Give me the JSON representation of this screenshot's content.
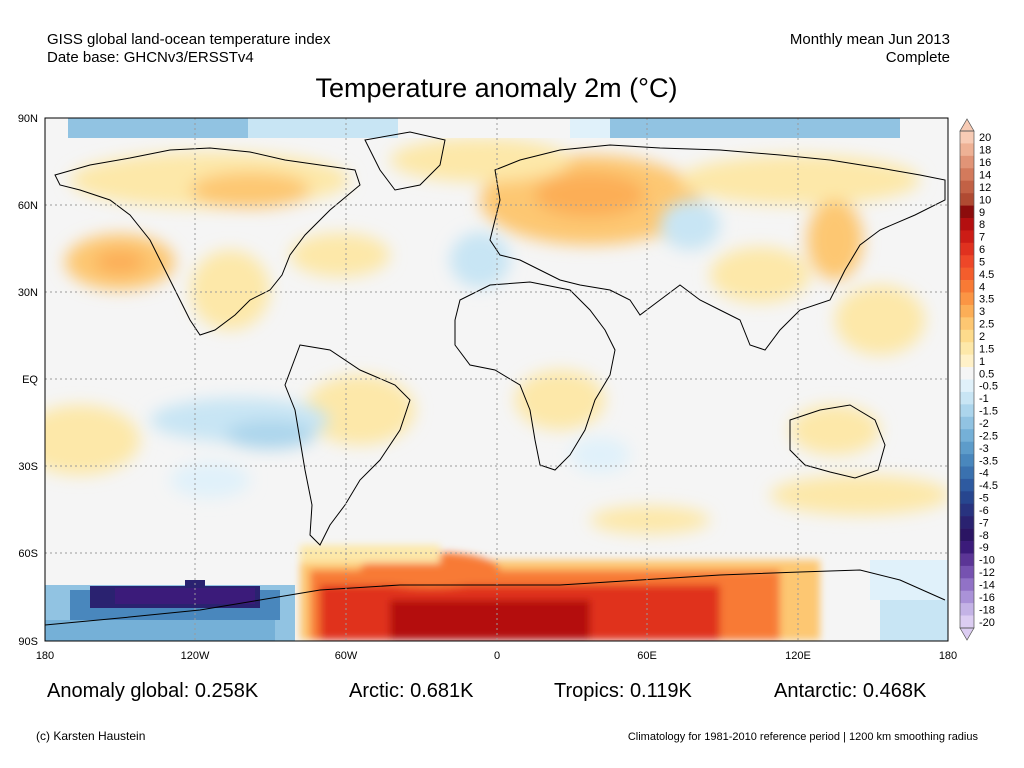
{
  "header": {
    "left_line1": "GISS global land-ocean temperature index",
    "left_line2": "Date base: GHCNv3/ERSSTv4",
    "right_line1": "Monthly mean Jun 2013",
    "right_line2": "Complete"
  },
  "title": "Temperature anomaly 2m (°C)",
  "map": {
    "lat_ticks": [
      "90N",
      "60N",
      "30N",
      "EQ",
      "30S",
      "60S",
      "90S"
    ],
    "lon_ticks": [
      "180",
      "120W",
      "60W",
      "0",
      "60E",
      "120E",
      "180"
    ],
    "ocean_neutral_color": "#f5f5f5",
    "coastline_color": "#000000"
  },
  "colorbar": {
    "labels": [
      "20",
      "18",
      "16",
      "14",
      "12",
      "10",
      "9",
      "8",
      "7",
      "6",
      "5",
      "4.5",
      "4",
      "3.5",
      "3",
      "2.5",
      "2",
      "1.5",
      "1",
      "0.5",
      "-0.5",
      "-1",
      "-1.5",
      "-2",
      "-2.5",
      "-3",
      "-3.5",
      "-4",
      "-4.5",
      "-5",
      "-6",
      "-7",
      "-8",
      "-9",
      "-10",
      "-12",
      "-14",
      "-16",
      "-18",
      "-20"
    ],
    "colors": [
      "#f7cbb5",
      "#eeb195",
      "#e19477",
      "#d37a5c",
      "#c26145",
      "#b04a32",
      "#8c0c0c",
      "#b40f10",
      "#cc1c16",
      "#e0311f",
      "#ee4728",
      "#f45d2c",
      "#f87a35",
      "#fb9544",
      "#fcae57",
      "#fdc772",
      "#fddb8c",
      "#fde8a9",
      "#fff1c8",
      "#f5f5f5",
      "#e0f1fa",
      "#c8e5f4",
      "#acd5ec",
      "#91c3e2",
      "#75b0d7",
      "#5d9cca",
      "#4987bd",
      "#3a71af",
      "#2e5aa0",
      "#27468f",
      "#28337f",
      "#2a2270",
      "#2b1563",
      "#3b1b7a",
      "#5b3596",
      "#7652b0",
      "#9172c6",
      "#aa92d8",
      "#c4b3e6",
      "#dccdf2"
    ]
  },
  "chart_data": {
    "type": "heatmap",
    "title": "Temperature anomaly 2m (°C)",
    "x_range": [
      "180W",
      "180E"
    ],
    "y_range": [
      "90S",
      "90N"
    ],
    "colorbar_range": [
      -20,
      20
    ],
    "colorbar_levels": [
      20,
      18,
      16,
      14,
      12,
      10,
      9,
      8,
      7,
      6,
      5,
      4.5,
      4,
      3.5,
      3,
      2.5,
      2,
      1.5,
      1,
      0.5,
      -0.5,
      -1,
      -1.5,
      -2,
      -2.5,
      -3,
      -3.5,
      -4,
      -4.5,
      -5,
      -6,
      -7,
      -8,
      -9,
      -10,
      -12,
      -14,
      -16,
      -18,
      -20
    ],
    "grid": true,
    "regional_means": [
      {
        "label": "Anomaly global: 0.258K",
        "region": "global",
        "value": 0.258
      },
      {
        "label": "Arctic: 0.681K",
        "region": "Arctic",
        "value": 0.681
      },
      {
        "label": "Tropics: 0.119K",
        "region": "Tropics",
        "value": 0.119
      },
      {
        "label": "Antarctic: 0.468K",
        "region": "Antarctic",
        "value": 0.468
      }
    ]
  },
  "stats": {
    "global": "Anomaly global: 0.258K",
    "arctic": "Arctic: 0.681K",
    "tropics": "Tropics: 0.119K",
    "antarctic": "Antarctic: 0.468K"
  },
  "footer": {
    "credit": "(c) Karsten Haustein",
    "climatology": "Climatology for 1981-2010 reference period | 1200 km smoothing radius"
  }
}
